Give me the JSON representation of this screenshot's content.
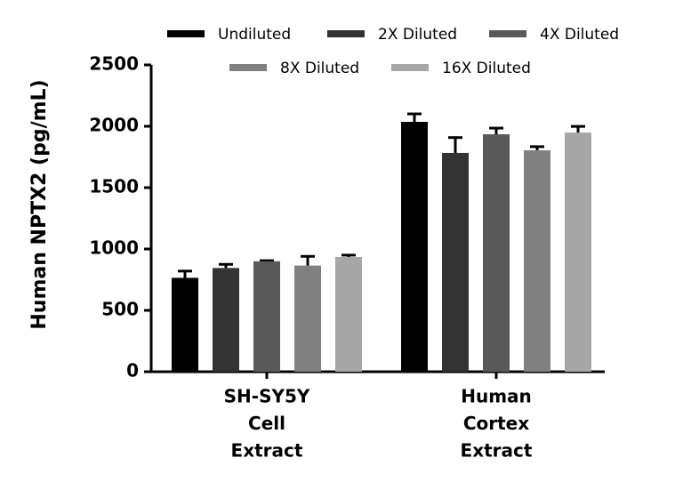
{
  "chart_data": {
    "type": "bar",
    "y_label": "Human NPTX2 (pg/mL)",
    "categories": [
      [
        "SH-SY5Y",
        "Cell",
        "Extract"
      ],
      [
        "Human",
        "Cortex",
        "Extract"
      ]
    ],
    "series": [
      {
        "name": "Undiluted",
        "color": "#000000",
        "values": [
          765,
          2036
        ],
        "errors": [
          55,
          65
        ]
      },
      {
        "name": "2X Diluted",
        "color": "#333333",
        "values": [
          845,
          1783
        ],
        "errors": [
          30,
          125
        ]
      },
      {
        "name": "4X Diluted",
        "color": "#595959",
        "values": [
          900,
          1935
        ],
        "errors": [
          5,
          50
        ]
      },
      {
        "name": "8X Diluted",
        "color": "#808080",
        "values": [
          865,
          1804
        ],
        "errors": [
          75,
          30
        ]
      },
      {
        "name": "16X Diluted",
        "color": "#a6a6a6",
        "values": [
          935,
          1949
        ],
        "errors": [
          15,
          50
        ]
      }
    ],
    "ylim": [
      0,
      2500
    ],
    "yticks": [
      0,
      500,
      1000,
      1500,
      2000,
      2500
    ],
    "legend": "top"
  }
}
